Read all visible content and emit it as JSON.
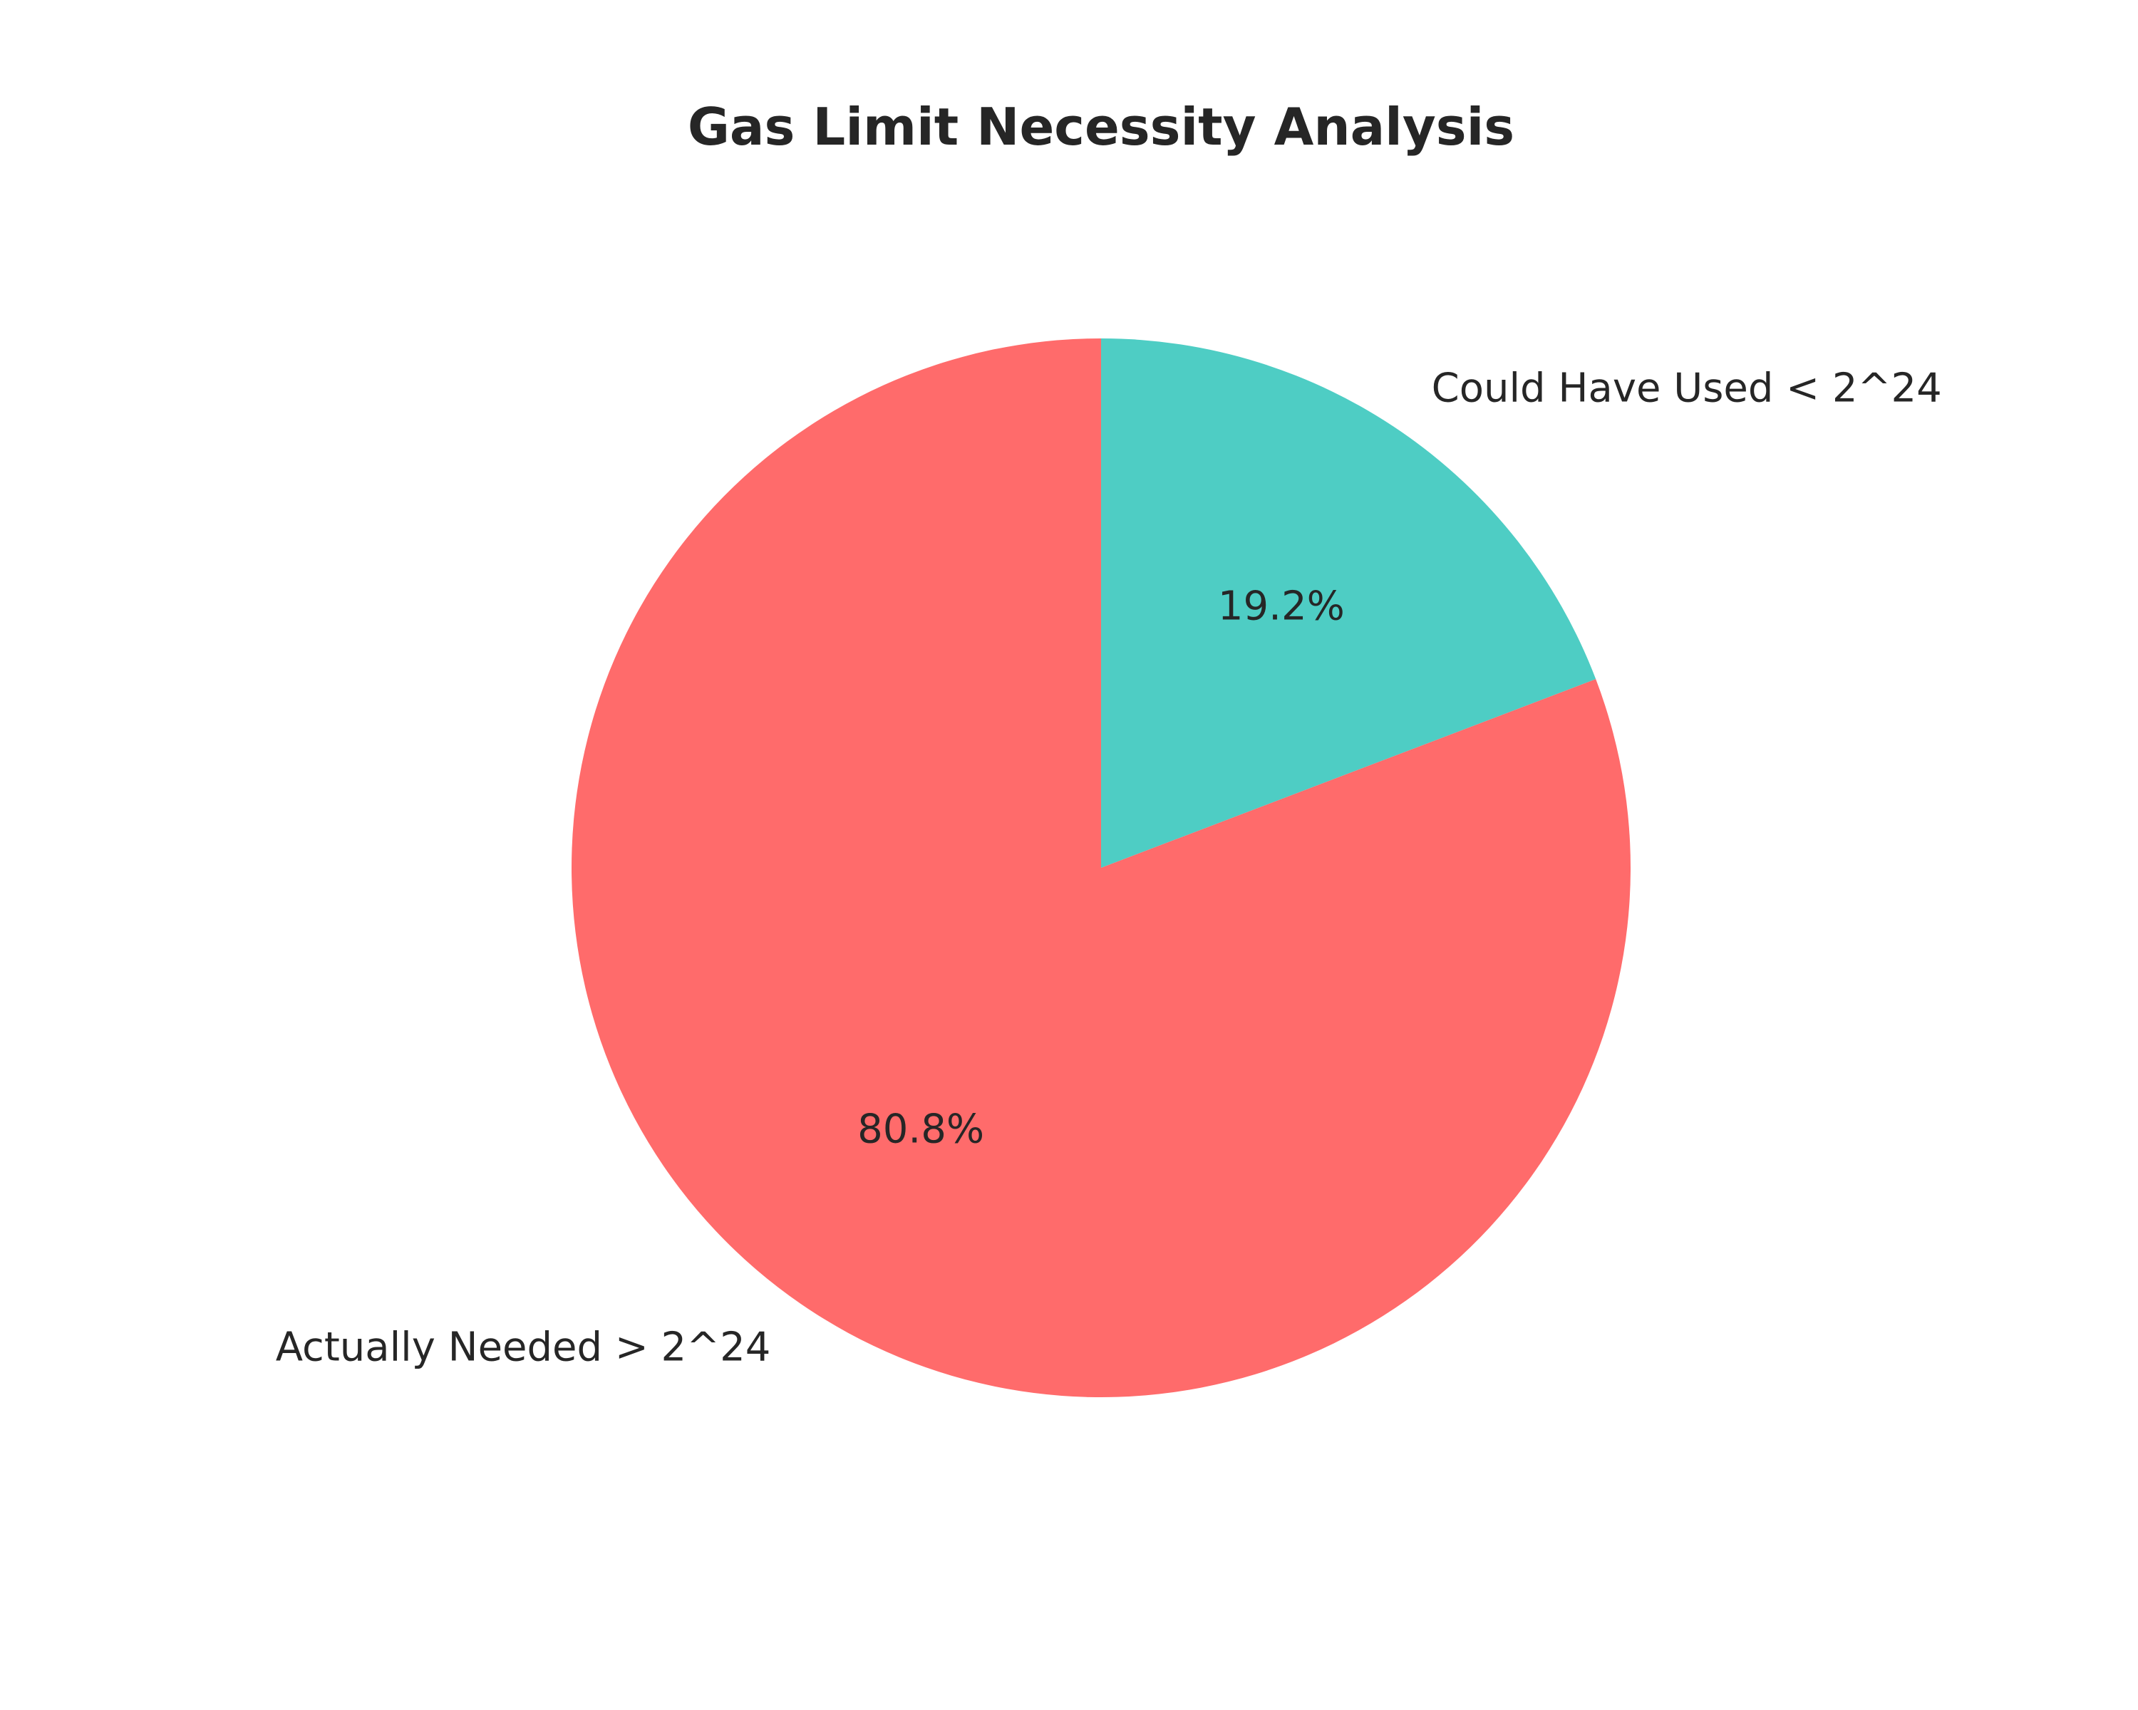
{
  "chart_data": {
    "type": "pie",
    "title": "Gas Limit Necessity Analysis",
    "start": "top",
    "direction": "clockwise",
    "slices": [
      {
        "label": "Could Have Used < 2^24",
        "value": 19.2,
        "pct_label": "19.2%",
        "color": "#4ECDC4"
      },
      {
        "label": "Actually Needed > 2^24",
        "value": 80.8,
        "pct_label": "80.8%",
        "color": "#FF6B6B"
      }
    ]
  }
}
